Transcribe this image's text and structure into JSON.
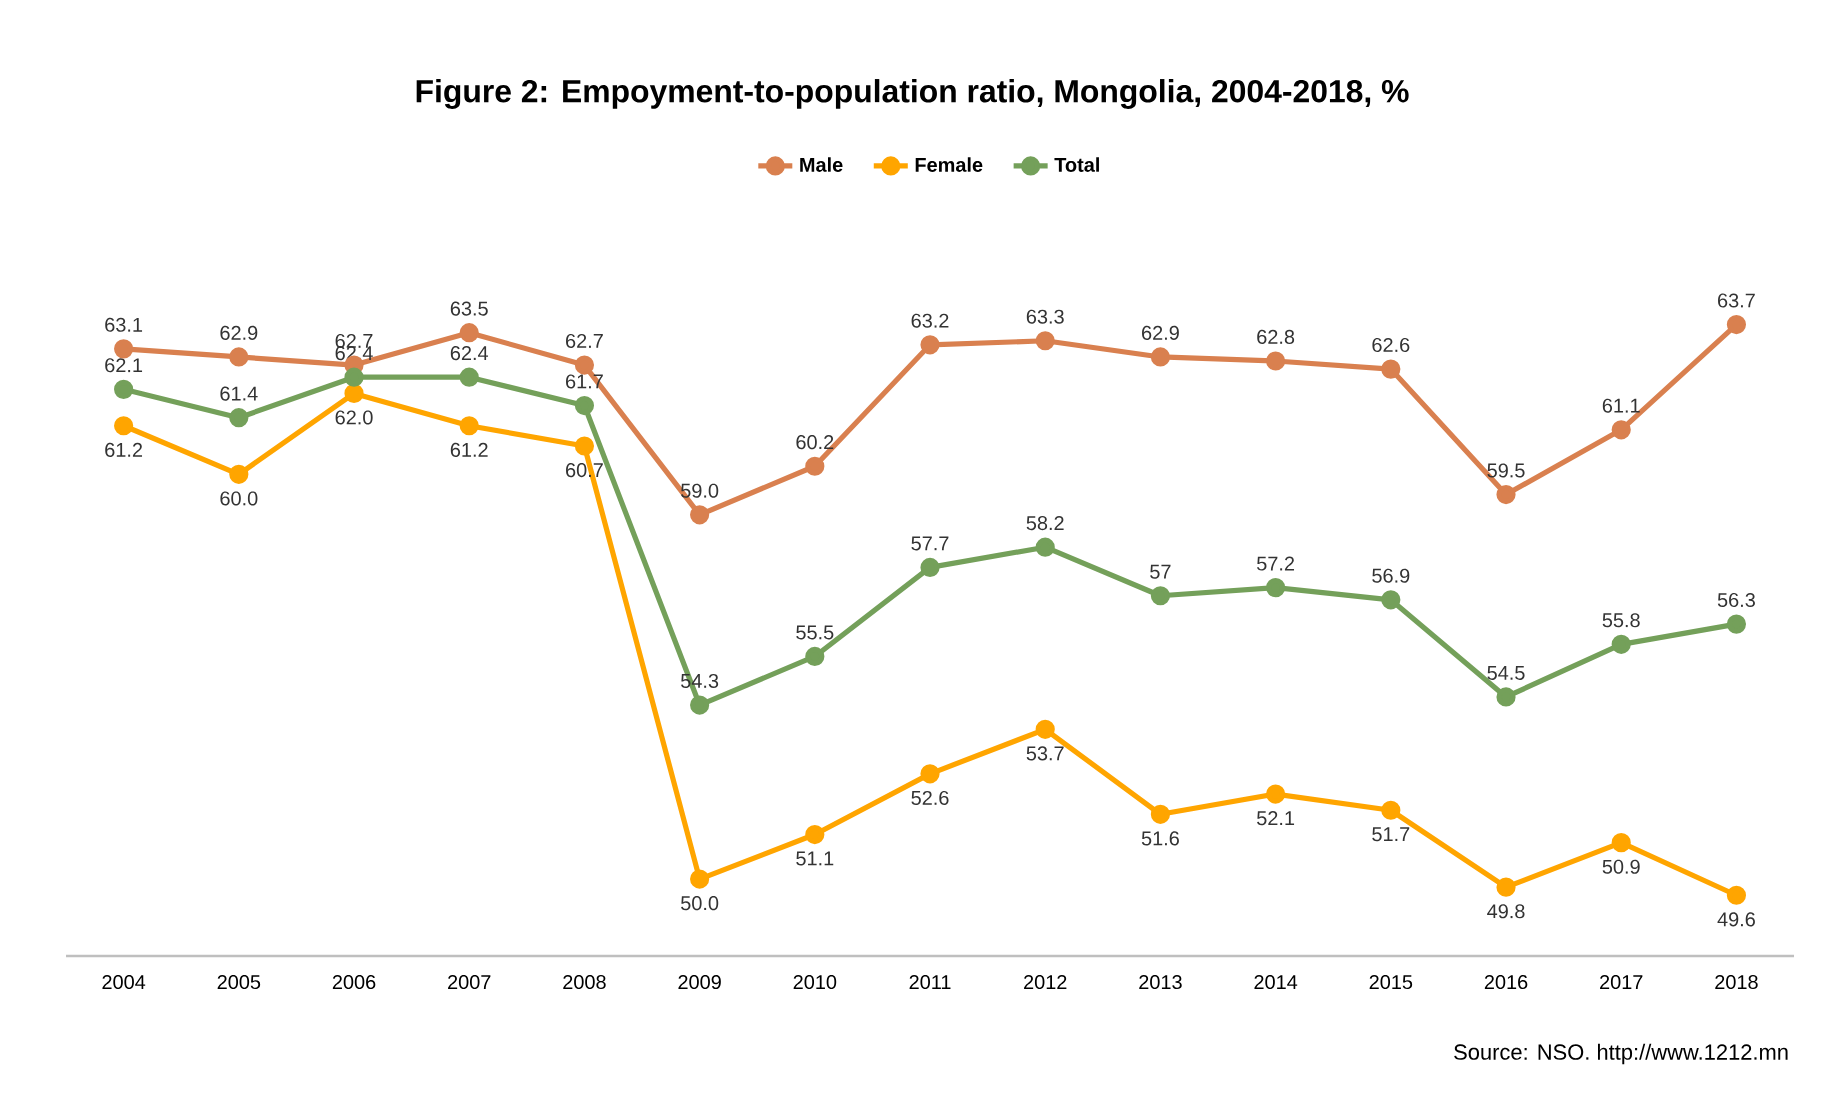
{
  "chart_data": {
    "type": "line",
    "title": "Figure 2: Empoyment-to-population ratio, Mongolia, 2004-2018, %",
    "categories": [
      "2004",
      "2005",
      "2006",
      "2007",
      "2008",
      "2009",
      "2010",
      "2011",
      "2012",
      "2013",
      "2014",
      "2015",
      "2016",
      "2017",
      "2018"
    ],
    "series": [
      {
        "name": "Male",
        "color": "#d9804f",
        "values": [
          63.1,
          62.9,
          62.7,
          63.5,
          62.7,
          59.0,
          60.2,
          63.2,
          63.3,
          62.9,
          62.8,
          62.6,
          59.5,
          61.1,
          63.7
        ],
        "value_labels": [
          "63.1",
          "62.9",
          "62.7",
          "63.5",
          "62.7",
          "59.0",
          "60.2",
          "63.2",
          "63.3",
          "62.9",
          "62.8",
          "62.6",
          "59.5",
          "61.1",
          "63.7"
        ]
      },
      {
        "name": "Female",
        "color": "#ffa500",
        "values": [
          61.2,
          60.0,
          62.0,
          61.2,
          60.7,
          50.0,
          51.1,
          52.6,
          53.7,
          51.6,
          52.1,
          51.7,
          49.8,
          50.9,
          49.6
        ],
        "value_labels": [
          "61.2",
          "60.0",
          "62.0",
          "61.2",
          "60.7",
          "50.0",
          "51.1",
          "52.6",
          "53.7",
          "51.6",
          "52.1",
          "51.7",
          "49.8",
          "50.9",
          "49.6"
        ]
      },
      {
        "name": "Total",
        "color": "#74a05a",
        "values": [
          62.1,
          61.4,
          62.4,
          62.4,
          61.7,
          54.3,
          55.5,
          57.7,
          58.2,
          57,
          57.2,
          56.9,
          54.5,
          55.8,
          56.3
        ],
        "value_labels": [
          "62.1",
          "61.4",
          "62.4",
          "62.4",
          "61.7",
          "54.3",
          "55.5",
          "57.7",
          "58.2",
          "57",
          "57.2",
          "56.9",
          "54.5",
          "55.8",
          "56.3"
        ]
      }
    ],
    "marker": "circle",
    "legend": "top",
    "grid": false,
    "annotations": [
      "Source: NSO. http://www.1212.mn"
    ]
  }
}
